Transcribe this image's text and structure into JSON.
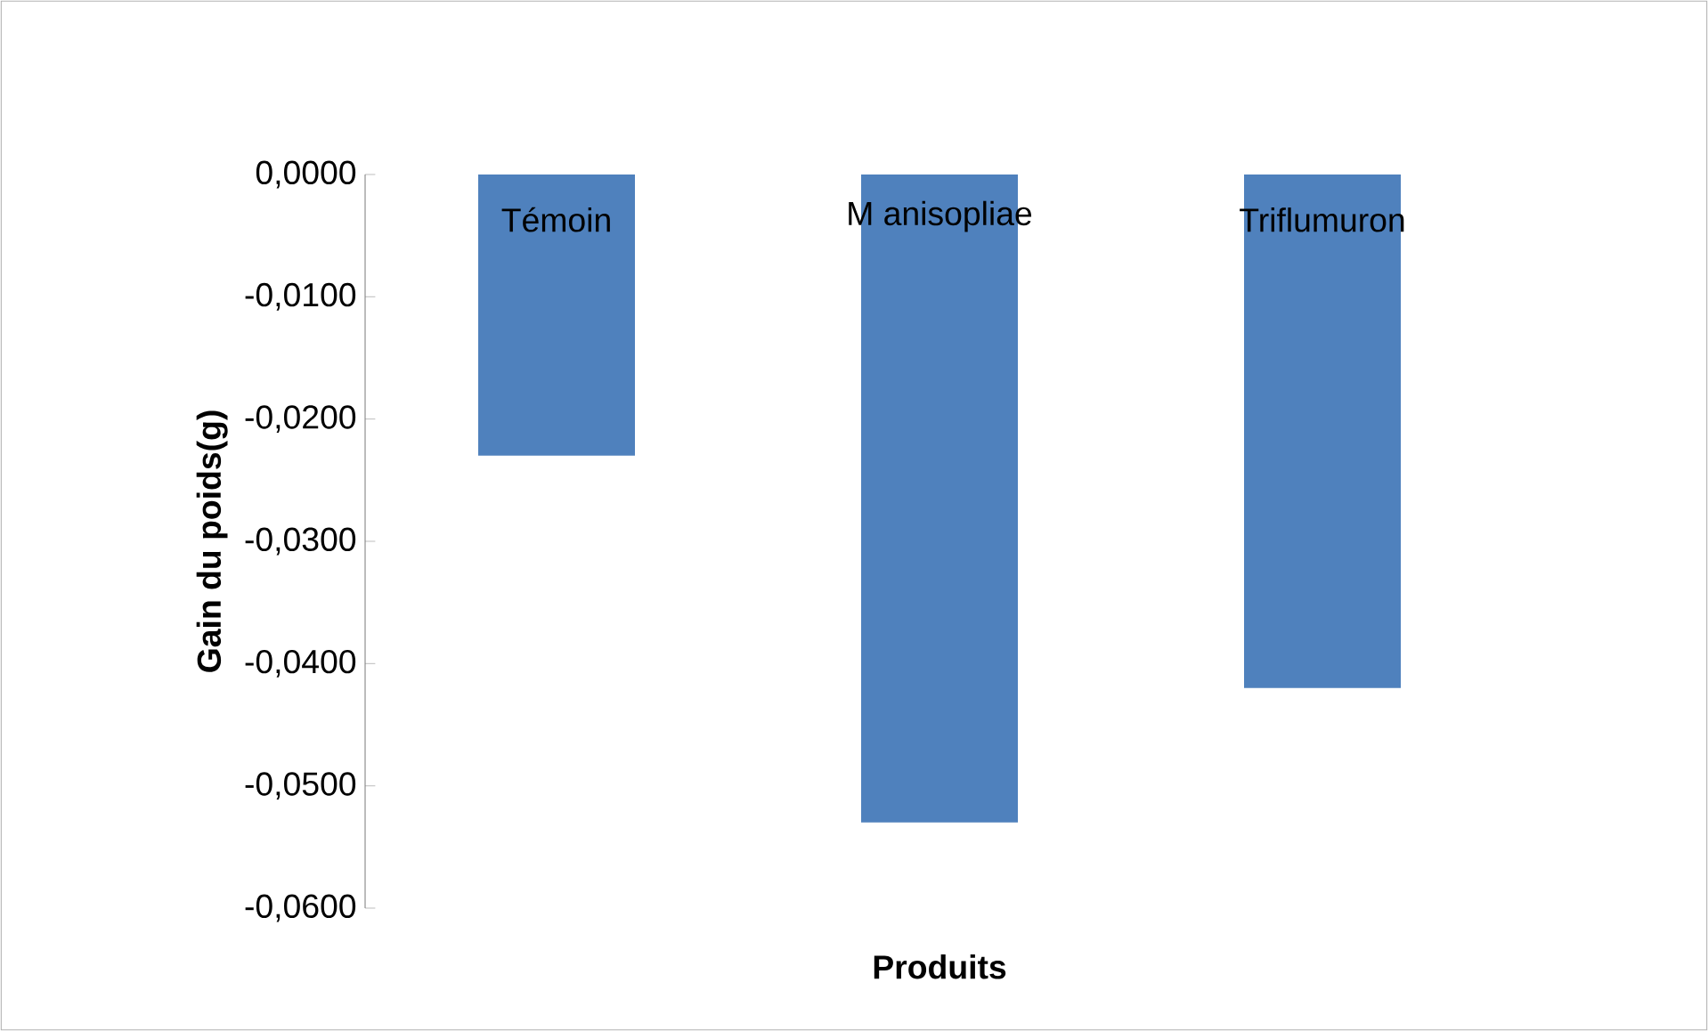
{
  "chart_data": {
    "type": "bar",
    "xlabel": "Produits",
    "ylabel": "Gain du poids(g)",
    "categories": [
      "Témoin",
      "M anisopliae",
      "Triflumuron"
    ],
    "values": [
      -0.023,
      -0.053,
      -0.042
    ],
    "color": "#4f81bd",
    "ylim": [
      -0.06,
      0
    ],
    "yticks": [
      {
        "value": 0,
        "label": "0,0000"
      },
      {
        "value": -0.01,
        "label": "-0,0100"
      },
      {
        "value": -0.02,
        "label": "-0,0200"
      },
      {
        "value": -0.03,
        "label": "-0,0300"
      },
      {
        "value": -0.04,
        "label": "-0,0400"
      },
      {
        "value": -0.05,
        "label": "-0,0500"
      },
      {
        "value": -0.06,
        "label": "-0,0600"
      }
    ],
    "grid": false
  }
}
